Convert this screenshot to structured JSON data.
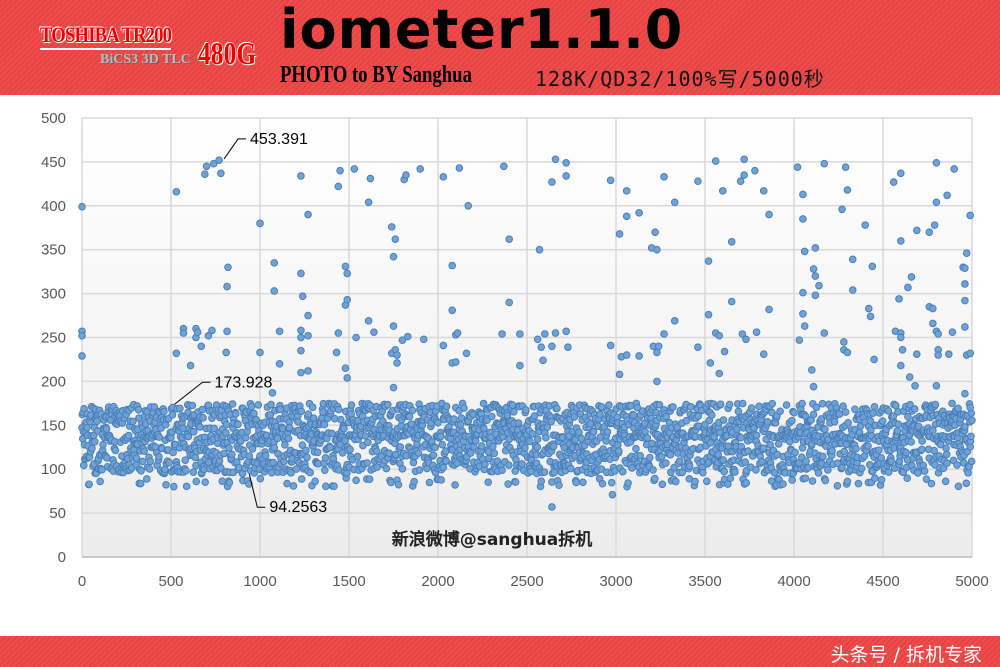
{
  "header": {
    "logo_brand": "TOSHIBA TR200",
    "logo_sub": "BiCS3 3D TLC",
    "logo_capacity": "480G",
    "title": "iometer1.1.0",
    "credit": "PHOTO to BY Sanghua",
    "params": "128K/QD32/100%写/5000秒"
  },
  "footer": {
    "text": "头条号 / 拆机专家"
  },
  "colors": {
    "banner": "#f04a4a",
    "marker_fill": "#6fa3d8",
    "marker_stroke": "#4a7eb5"
  },
  "chart_data": {
    "type": "scatter",
    "title": "",
    "xlabel": "",
    "ylabel": "",
    "xlim": [
      0,
      5000
    ],
    "ylim": [
      0,
      500
    ],
    "xticks": [
      0,
      500,
      1000,
      1500,
      2000,
      2500,
      3000,
      3500,
      4000,
      4500,
      5000
    ],
    "yticks": [
      0,
      50,
      100,
      150,
      200,
      250,
      300,
      350,
      400,
      450,
      500
    ],
    "grid": true,
    "legend": "none",
    "watermark": "新浪微博@sanghua拆机",
    "main_band": {
      "x_range": [
        0,
        5000
      ],
      "y_range": [
        80,
        178
      ]
    },
    "annotations": [
      {
        "x": 798,
        "y": 453.391,
        "text": "453.391"
      },
      {
        "x": 520,
        "y": 173.928,
        "text": "173.928"
      },
      {
        "x": 940,
        "y": 94.2563,
        "text": "94.2563"
      }
    ],
    "outliers": [
      [
        0,
        399
      ],
      [
        0,
        257
      ],
      [
        0,
        252
      ],
      [
        0,
        229
      ],
      [
        530,
        416
      ],
      [
        530,
        232
      ],
      [
        570,
        260
      ],
      [
        570,
        255
      ],
      [
        610,
        218
      ],
      [
        640,
        260
      ],
      [
        640,
        250
      ],
      [
        650,
        256
      ],
      [
        690,
        436
      ],
      [
        700,
        445
      ],
      [
        740,
        448
      ],
      [
        670,
        240
      ],
      [
        710,
        252
      ],
      [
        730,
        258
      ],
      [
        770,
        452
      ],
      [
        780,
        437
      ],
      [
        810,
        233
      ],
      [
        815,
        308
      ],
      [
        815,
        257
      ],
      [
        820,
        330
      ],
      [
        1000,
        380
      ],
      [
        1000,
        233
      ],
      [
        1070,
        187
      ],
      [
        1080,
        335
      ],
      [
        1080,
        303
      ],
      [
        1110,
        257
      ],
      [
        1110,
        220
      ],
      [
        1230,
        434
      ],
      [
        1230,
        323
      ],
      [
        1240,
        297
      ],
      [
        1230,
        258
      ],
      [
        1230,
        250
      ],
      [
        1230,
        235
      ],
      [
        1230,
        210
      ],
      [
        1270,
        390
      ],
      [
        1270,
        275
      ],
      [
        1270,
        252
      ],
      [
        1270,
        212
      ],
      [
        1430,
        233
      ],
      [
        1440,
        422
      ],
      [
        1440,
        255
      ],
      [
        1450,
        440
      ],
      [
        1480,
        331
      ],
      [
        1480,
        287
      ],
      [
        1480,
        215
      ],
      [
        1490,
        323
      ],
      [
        1490,
        293
      ],
      [
        1490,
        204
      ],
      [
        1530,
        442
      ],
      [
        1540,
        250
      ],
      [
        1610,
        404
      ],
      [
        1610,
        269
      ],
      [
        1620,
        431
      ],
      [
        1640,
        256
      ],
      [
        1740,
        376
      ],
      [
        1740,
        232
      ],
      [
        1750,
        342
      ],
      [
        1750,
        263
      ],
      [
        1750,
        193
      ],
      [
        1760,
        362
      ],
      [
        1760,
        236
      ],
      [
        1770,
        230
      ],
      [
        1770,
        221
      ],
      [
        1800,
        247
      ],
      [
        1810,
        430
      ],
      [
        1820,
        435
      ],
      [
        1830,
        251
      ],
      [
        1900,
        442
      ],
      [
        1920,
        248
      ],
      [
        2030,
        433
      ],
      [
        2030,
        241
      ],
      [
        2080,
        281
      ],
      [
        2080,
        332
      ],
      [
        2080,
        221
      ],
      [
        2100,
        222
      ],
      [
        2100,
        253
      ],
      [
        2110,
        255
      ],
      [
        2120,
        443
      ],
      [
        2160,
        232
      ],
      [
        2170,
        400
      ],
      [
        2360,
        254
      ],
      [
        2370,
        445
      ],
      [
        2400,
        362
      ],
      [
        2400,
        290
      ],
      [
        2460,
        254
      ],
      [
        2460,
        218
      ],
      [
        2560,
        248
      ],
      [
        2570,
        350
      ],
      [
        2580,
        239
      ],
      [
        2590,
        224
      ],
      [
        2600,
        254
      ],
      [
        2640,
        427
      ],
      [
        2640,
        240
      ],
      [
        2640,
        57
      ],
      [
        2660,
        453
      ],
      [
        2660,
        255
      ],
      [
        2720,
        449
      ],
      [
        2720,
        434
      ],
      [
        2720,
        257
      ],
      [
        2730,
        239
      ],
      [
        2970,
        429
      ],
      [
        2970,
        241
      ],
      [
        2980,
        71
      ],
      [
        3020,
        368
      ],
      [
        3020,
        208
      ],
      [
        3030,
        228
      ],
      [
        3060,
        388
      ],
      [
        3060,
        417
      ],
      [
        3060,
        230
      ],
      [
        3130,
        392
      ],
      [
        3130,
        229
      ],
      [
        3200,
        352
      ],
      [
        3210,
        240
      ],
      [
        3220,
        370
      ],
      [
        3230,
        350
      ],
      [
        3230,
        233
      ],
      [
        3230,
        200
      ],
      [
        3240,
        240
      ],
      [
        3270,
        433
      ],
      [
        3270,
        254
      ],
      [
        3330,
        269
      ],
      [
        3330,
        404
      ],
      [
        3460,
        428
      ],
      [
        3460,
        239
      ],
      [
        3520,
        337
      ],
      [
        3520,
        276
      ],
      [
        3530,
        221
      ],
      [
        3560,
        451
      ],
      [
        3560,
        255
      ],
      [
        3580,
        252
      ],
      [
        3580,
        209
      ],
      [
        3600,
        417
      ],
      [
        3610,
        234
      ],
      [
        3650,
        359
      ],
      [
        3650,
        291
      ],
      [
        3700,
        428
      ],
      [
        3710,
        254
      ],
      [
        3720,
        453
      ],
      [
        3720,
        435
      ],
      [
        3730,
        248
      ],
      [
        3780,
        440
      ],
      [
        3790,
        256
      ],
      [
        3830,
        231
      ],
      [
        3830,
        417
      ],
      [
        3860,
        390
      ],
      [
        3860,
        282
      ],
      [
        4020,
        444
      ],
      [
        4030,
        247
      ],
      [
        4050,
        413
      ],
      [
        4050,
        385
      ],
      [
        4050,
        301
      ],
      [
        4050,
        277
      ],
      [
        4060,
        348
      ],
      [
        4060,
        263
      ],
      [
        4100,
        213
      ],
      [
        4110,
        328
      ],
      [
        4110,
        194
      ],
      [
        4120,
        352
      ],
      [
        4120,
        320
      ],
      [
        4120,
        298
      ],
      [
        4140,
        309
      ],
      [
        4170,
        448
      ],
      [
        4170,
        255
      ],
      [
        4270,
        396
      ],
      [
        4280,
        245
      ],
      [
        4280,
        236
      ],
      [
        4290,
        444
      ],
      [
        4300,
        418
      ],
      [
        4300,
        233
      ],
      [
        4330,
        339
      ],
      [
        4330,
        304
      ],
      [
        4400,
        378
      ],
      [
        4420,
        283
      ],
      [
        4430,
        274
      ],
      [
        4440,
        331
      ],
      [
        4450,
        225
      ],
      [
        4560,
        427
      ],
      [
        4570,
        257
      ],
      [
        4590,
        294
      ],
      [
        4600,
        437
      ],
      [
        4600,
        360
      ],
      [
        4600,
        255
      ],
      [
        4600,
        250
      ],
      [
        4600,
        218
      ],
      [
        4610,
        236
      ],
      [
        4640,
        307
      ],
      [
        4650,
        205
      ],
      [
        4660,
        319
      ],
      [
        4680,
        195
      ],
      [
        4690,
        231
      ],
      [
        4690,
        372
      ],
      [
        4760,
        370
      ],
      [
        4760,
        285
      ],
      [
        4780,
        283
      ],
      [
        4780,
        266
      ],
      [
        4790,
        378
      ],
      [
        4800,
        449
      ],
      [
        4800,
        404
      ],
      [
        4800,
        257
      ],
      [
        4800,
        195
      ],
      [
        4810,
        254
      ],
      [
        4810,
        236
      ],
      [
        4810,
        230
      ],
      [
        4860,
        412
      ],
      [
        4870,
        231
      ],
      [
        4890,
        256
      ],
      [
        4900,
        442
      ],
      [
        4950,
        330
      ],
      [
        4960,
        329
      ],
      [
        4960,
        292
      ],
      [
        4960,
        311
      ],
      [
        4960,
        262
      ],
      [
        4960,
        186
      ],
      [
        4970,
        346
      ],
      [
        4970,
        230
      ],
      [
        4990,
        232
      ],
      [
        4990,
        389
      ],
      [
        4990,
        170
      ]
    ]
  }
}
